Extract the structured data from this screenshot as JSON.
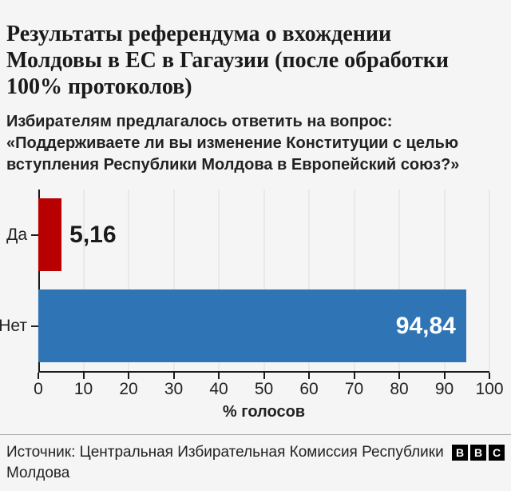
{
  "header": {
    "title": "Результаты референдума о вхождении\nМолдовы в ЕС в Гагаузии (после обработки\n100% протоколов)",
    "subtitle": "Избирателям предлагалось ответить на вопрос:\n«Поддерживаете ли вы изменение Конституции с целью\nвступления Республики Молдова в Европейский союз?»"
  },
  "chart_data": {
    "type": "bar",
    "orientation": "horizontal",
    "categories": [
      "Да",
      "Нет"
    ],
    "values": [
      5.16,
      94.84
    ],
    "value_labels": [
      "5,16",
      "94,84"
    ],
    "bar_colors": [
      "#b80000",
      "#2f75b5"
    ],
    "xlabel": "% голосов",
    "x_ticks": [
      0,
      10,
      20,
      30,
      40,
      50,
      60,
      70,
      80,
      90,
      100
    ],
    "xlim": [
      0,
      100
    ],
    "grid": true,
    "legend": false
  },
  "footer": {
    "source": "Источник: Центральная Избирательная Комиссия Республики\nМолдова",
    "logo_letters": [
      "B",
      "B",
      "C"
    ]
  },
  "colors": {
    "background": "#f5f5f5",
    "title_text": "#1a1a1a",
    "body_text": "#222222",
    "bar_yes_red": "#b80000",
    "bar_no_blue": "#2f75b5",
    "value_label_inside": "#ffffff",
    "gridline": "#e9e9e9",
    "axis": "#1a1a1a",
    "divider": "#ababab",
    "logo_background": "#000000"
  }
}
